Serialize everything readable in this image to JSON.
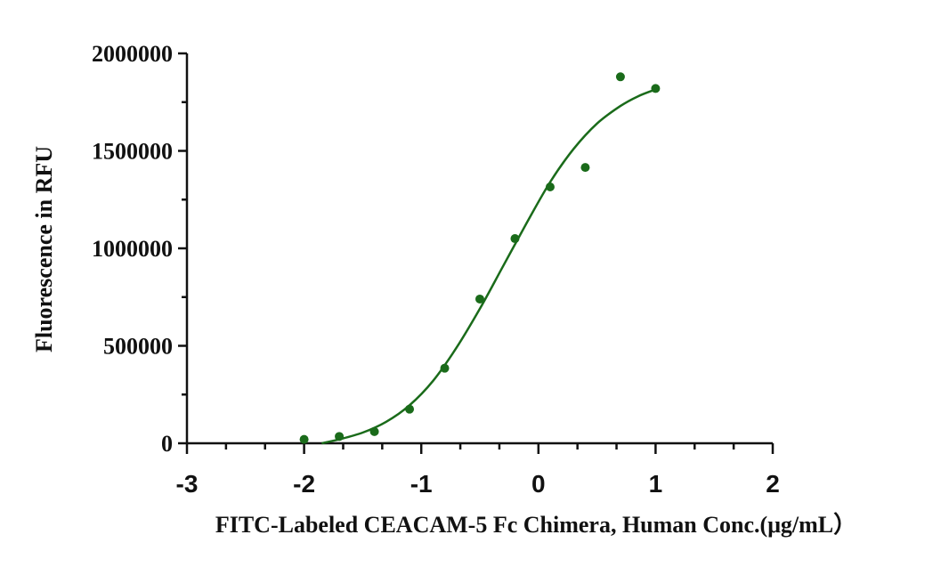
{
  "chart_data": {
    "type": "scatter",
    "title": "",
    "xlabel": "FITC-Labeled CEACAM-5 Fc Chimera, Human Conc.(μg/mL）",
    "ylabel": "Fluorescence in RFU",
    "xlim": [
      -3,
      2
    ],
    "ylim": [
      0,
      2000000
    ],
    "x_ticks": [
      -3,
      -2,
      -1,
      0,
      1,
      2
    ],
    "x_tick_labels": [
      "-3",
      "-2",
      "-1",
      "0",
      "1",
      "2"
    ],
    "y_ticks": [
      0,
      500000,
      1000000,
      1500000,
      2000000
    ],
    "y_tick_labels": [
      "0",
      "500000",
      "1000000",
      "1500000",
      "2000000"
    ],
    "grid": false,
    "legend": "none",
    "series": [
      {
        "color": "#1a6b1a",
        "points": [
          {
            "x": -2.0,
            "y": 20000
          },
          {
            "x": -1.7,
            "y": 35000
          },
          {
            "x": -1.4,
            "y": 60000
          },
          {
            "x": -1.1,
            "y": 175000
          },
          {
            "x": -0.8,
            "y": 385000
          },
          {
            "x": -0.5,
            "y": 740000
          },
          {
            "x": -0.2,
            "y": 1050000
          },
          {
            "x": 0.1,
            "y": 1315000
          },
          {
            "x": 0.4,
            "y": 1415000
          },
          {
            "x": 0.7,
            "y": 1880000
          },
          {
            "x": 1.0,
            "y": 1820000
          }
        ]
      }
    ],
    "fit_curve": {
      "color": "#1a6b1a",
      "x": [
        -1.85,
        -1.7,
        -1.5,
        -1.3,
        -1.1,
        -0.9,
        -0.7,
        -0.5,
        -0.3,
        -0.1,
        0.1,
        0.3,
        0.5,
        0.7,
        0.85,
        1.0
      ],
      "y": [
        0,
        20000,
        55000,
        110000,
        195000,
        320000,
        490000,
        690000,
        910000,
        1130000,
        1340000,
        1510000,
        1640000,
        1730000,
        1780000,
        1815000
      ]
    }
  }
}
